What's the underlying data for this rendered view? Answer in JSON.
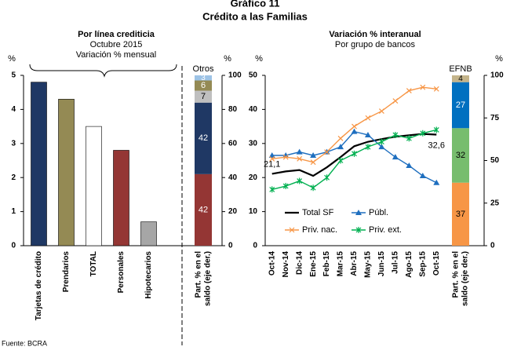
{
  "title": "Gráfico 11",
  "subtitle": "Crédito a las Familias",
  "source": "Fuente: BCRA",
  "chart_data": [
    {
      "type": "bar",
      "title": "Por línea crediticia",
      "subtitle": [
        "Octubre 2015",
        "Variación % mensual"
      ],
      "y_label": "%",
      "ylim": [
        0,
        5
      ],
      "yticks": [
        0,
        1,
        2,
        3,
        4,
        5
      ],
      "categories": [
        "Tarjetas de crédito",
        "Prendarios",
        "TOTAL",
        "Personales",
        "Hipotecarios"
      ],
      "values": [
        4.8,
        4.3,
        3.5,
        2.8,
        0.7
      ],
      "colors": [
        "#1f3864",
        "#948a54",
        "#ffffff",
        "#943634",
        "#a6a6a6"
      ],
      "share": {
        "label": [
          "Part. % en el",
          "saldo (eje der.)"
        ],
        "top_label": "Otros",
        "y2_label": "%",
        "y2lim": [
          0,
          100
        ],
        "y2ticks": [
          0,
          20,
          40,
          60,
          80,
          100
        ],
        "segments": [
          {
            "value": 42,
            "color": "#943634",
            "label_color": "#ffffff"
          },
          {
            "value": 42,
            "color": "#1f3864",
            "label_color": "#ffffff"
          },
          {
            "value": 7,
            "color": "#bfbfbf",
            "label_color": "#000000"
          },
          {
            "value": 6,
            "color": "#948a54",
            "label_color": "#ffffff"
          },
          {
            "value": 3,
            "color": "#9dc3e6",
            "label_color": "#ffffff"
          }
        ]
      }
    },
    {
      "type": "line",
      "title": "Variación % interanual",
      "subtitle": [
        "Por grupo de bancos"
      ],
      "y_label": "%",
      "ylim": [
        0,
        50
      ],
      "yticks": [
        0,
        10,
        20,
        30,
        40,
        50
      ],
      "categories": [
        "Oct-14",
        "Nov-14",
        "Dic-14",
        "Ene-15",
        "Feb-15",
        "Mar-15",
        "Abr-15",
        "May-15",
        "Jun-15",
        "Jul-15",
        "Ago-15",
        "Sep-15",
        "Oct-15"
      ],
      "series": [
        {
          "name": "Total SF",
          "color": "#000000",
          "marker": "none",
          "values": [
            21.1,
            21.8,
            22.2,
            20.5,
            23,
            26,
            29.2,
            30.5,
            31.3,
            32,
            32.4,
            32.8,
            32.6
          ],
          "value_labels": [
            "21,1",
            null,
            null,
            null,
            null,
            null,
            null,
            null,
            null,
            null,
            null,
            null,
            "32,6"
          ]
        },
        {
          "name": "Públ.",
          "color": "#1f6fbf",
          "marker": "triangle",
          "values": [
            26.5,
            26.5,
            27.5,
            26.5,
            27.5,
            29,
            33.5,
            32.5,
            29,
            26,
            23.5,
            20.5,
            18.5
          ]
        },
        {
          "name": "Priv. nac.",
          "color": "#f79646",
          "marker": "x",
          "values": [
            25.5,
            26,
            25.5,
            24.5,
            27.5,
            31.5,
            35,
            37.5,
            39.5,
            42.5,
            45.5,
            46.5,
            46
          ]
        },
        {
          "name": "Priv. ext.",
          "color": "#00b050",
          "marker": "star",
          "values": [
            16.5,
            17.5,
            19,
            17,
            20,
            25,
            27,
            29,
            30.5,
            32.5,
            31.5,
            33,
            34
          ]
        }
      ],
      "share": {
        "label": [
          "Part. % en el",
          "saldo (eje der.)"
        ],
        "top_label": "EFNB",
        "y2_label": "%",
        "y2lim": [
          0,
          100
        ],
        "y2ticks": [
          0,
          25,
          50,
          75,
          100
        ],
        "segments": [
          {
            "value": 37,
            "color": "#f79646",
            "label_color": "#000000"
          },
          {
            "value": 32,
            "color": "#77bd6e",
            "label_color": "#000000"
          },
          {
            "value": 27,
            "color": "#0070c0",
            "label_color": "#ffffff"
          },
          {
            "value": 4,
            "color": "#c4b48a",
            "label_color": "#000000"
          }
        ]
      }
    }
  ]
}
